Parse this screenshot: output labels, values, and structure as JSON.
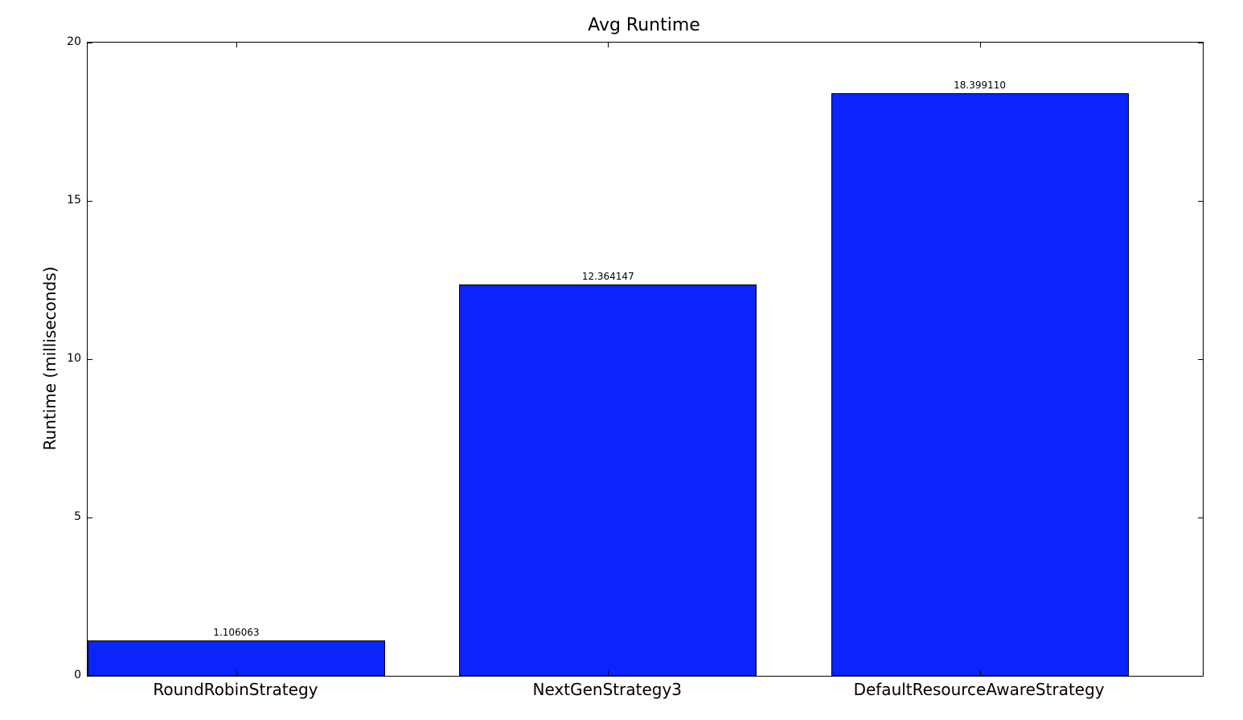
{
  "chart_data": {
    "type": "bar",
    "title": "Avg Runtime",
    "xlabel": "",
    "ylabel": "Runtime (milliseconds)",
    "categories": [
      "RoundRobinStrategy",
      "NextGenStrategy3",
      "DefaultResourceAwareStrategy"
    ],
    "values": [
      1.106063,
      12.364147,
      18.39911
    ],
    "value_labels": [
      "1.106063",
      "12.364147",
      "18.399110"
    ],
    "bar_x": [
      0,
      1,
      2
    ],
    "bar_width": 0.8,
    "xlim": [
      0,
      3
    ],
    "ylim": [
      0,
      20
    ],
    "yticks": [
      0,
      5,
      10,
      15,
      20
    ],
    "ytick_labels": [
      "0",
      "5",
      "10",
      "15",
      "20"
    ],
    "grid": false,
    "legend": null,
    "colors": {
      "bar_fill": "#0b24fb",
      "bar_edge": "#000000",
      "axis": "#000000",
      "text": "#000000",
      "background": "#ffffff"
    }
  }
}
